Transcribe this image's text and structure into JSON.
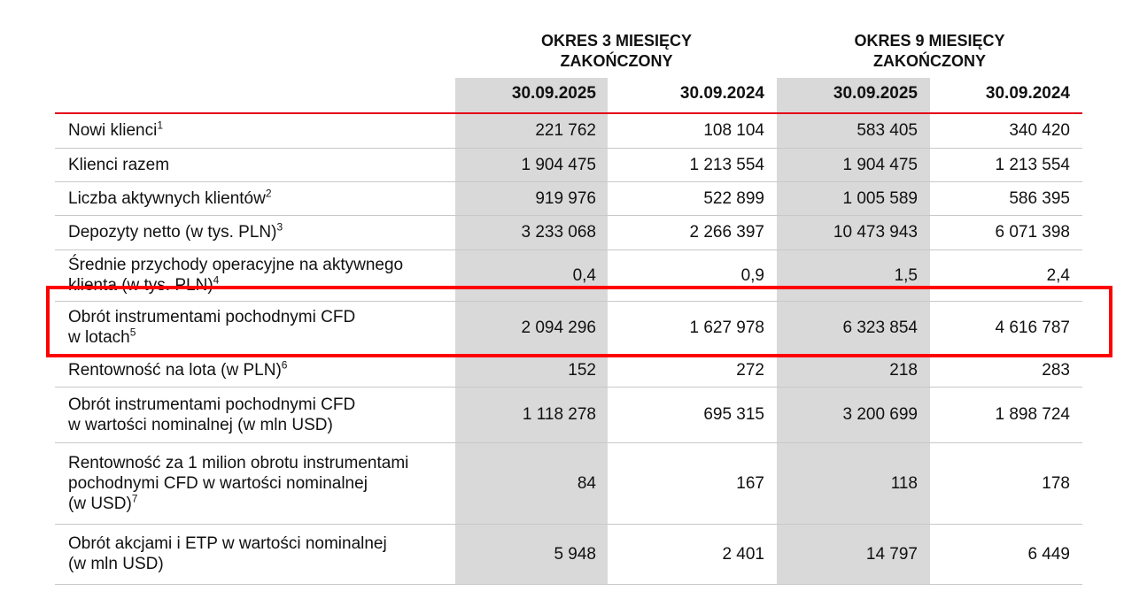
{
  "header": {
    "groups": [
      {
        "lines": [
          "OKRES 3 MIESIĘCY",
          "ZAKOŃCZONY"
        ]
      },
      {
        "lines": [
          "OKRES 9 MIESIĘCY",
          "ZAKOŃCZONY"
        ]
      }
    ],
    "dates": [
      "30.09.2025",
      "30.09.2024",
      "30.09.2025",
      "30.09.2024"
    ]
  },
  "table": {
    "rows": [
      {
        "label": [
          "Nowi klienci"
        ],
        "note": "1",
        "values": [
          "221 762",
          "108 104",
          "583 405",
          "340 420"
        ]
      },
      {
        "label": [
          "Klienci razem"
        ],
        "values": [
          "1 904 475",
          "1 213 554",
          "1 904 475",
          "1 213 554"
        ]
      },
      {
        "label": [
          "Liczba aktywnych klientów"
        ],
        "note": "2",
        "values": [
          "919 976",
          "522 899",
          "1 005 589",
          "586 395"
        ]
      },
      {
        "label": [
          "Depozyty netto (w tys. PLN)"
        ],
        "note": "3",
        "values": [
          "3 233 068",
          "2 266 397",
          "10 473 943",
          "6 071 398"
        ]
      },
      {
        "label": [
          "Średnie przychody operacyjne na aktywnego",
          "klienta (w tys. PLN)"
        ],
        "note": "4",
        "values": [
          "0,4",
          "0,9",
          "1,5",
          "2,4"
        ]
      },
      {
        "label": [
          "Obrót instrumentami pochodnymi CFD",
          "w lotach"
        ],
        "note": "5",
        "values": [
          "2 094 296",
          "1 627 978",
          "6 323 854",
          "4 616 787"
        ]
      },
      {
        "label": [
          "Rentowność na lota (w PLN)"
        ],
        "note": "6",
        "values": [
          "152",
          "272",
          "218",
          "283"
        ]
      },
      {
        "label": [
          "Obrót instrumentami pochodnymi CFD",
          "w wartości nominalnej (w mln USD)"
        ],
        "values": [
          "1 118 278",
          "695 315",
          "3 200 699",
          "1 898 724"
        ]
      },
      {
        "label": [
          "Rentowność za 1 milion obrotu instrumentami",
          "pochodnymi CFD w wartości nominalnej",
          "(w USD)"
        ],
        "note": "7",
        "values": [
          "84",
          "167",
          "118",
          "178"
        ]
      },
      {
        "label": [
          "Obrót akcjami i ETP w wartości nominalnej",
          "(w mln USD)"
        ],
        "values": [
          "5 948",
          "2 401",
          "14 797",
          "6 449"
        ]
      }
    ]
  }
}
